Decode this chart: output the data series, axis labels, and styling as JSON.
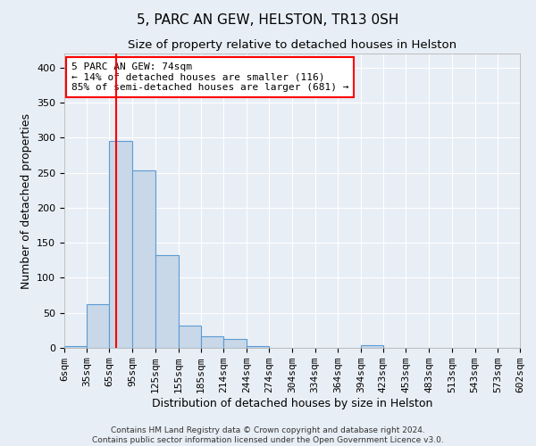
{
  "title": "5, PARC AN GEW, HELSTON, TR13 0SH",
  "subtitle": "Size of property relative to detached houses in Helston",
  "xlabel": "Distribution of detached houses by size in Helston",
  "ylabel": "Number of detached properties",
  "footer_line1": "Contains HM Land Registry data © Crown copyright and database right 2024.",
  "footer_line2": "Contains public sector information licensed under the Open Government Licence v3.0.",
  "bin_edges": [
    6,
    35,
    65,
    95,
    125,
    155,
    185,
    214,
    244,
    274,
    304,
    334,
    364,
    394,
    423,
    453,
    483,
    513,
    543,
    573,
    602
  ],
  "bin_labels": [
    "6sqm",
    "35sqm",
    "65sqm",
    "95sqm",
    "125sqm",
    "155sqm",
    "185sqm",
    "214sqm",
    "244sqm",
    "274sqm",
    "304sqm",
    "334sqm",
    "364sqm",
    "394sqm",
    "423sqm",
    "453sqm",
    "483sqm",
    "513sqm",
    "543sqm",
    "573sqm",
    "602sqm"
  ],
  "bar_heights": [
    3,
    62,
    295,
    253,
    133,
    32,
    17,
    13,
    3,
    0,
    0,
    0,
    0,
    4,
    0,
    0,
    0,
    0,
    0,
    0
  ],
  "bar_color": "#c8d8e8",
  "bar_edgecolor": "#5b9bd5",
  "vline_x": 74,
  "vline_color": "red",
  "annotation_text": "5 PARC AN GEW: 74sqm\n← 14% of detached houses are smaller (116)\n85% of semi-detached houses are larger (681) →",
  "annotation_box_color": "white",
  "annotation_box_edgecolor": "red",
  "ylim": [
    0,
    420
  ],
  "yticks": [
    0,
    50,
    100,
    150,
    200,
    250,
    300,
    350,
    400
  ],
  "background_color": "#e8eef5",
  "grid_color": "white",
  "title_fontsize": 11,
  "subtitle_fontsize": 9.5,
  "ylabel_fontsize": 9,
  "xlabel_fontsize": 9,
  "tick_fontsize": 8
}
